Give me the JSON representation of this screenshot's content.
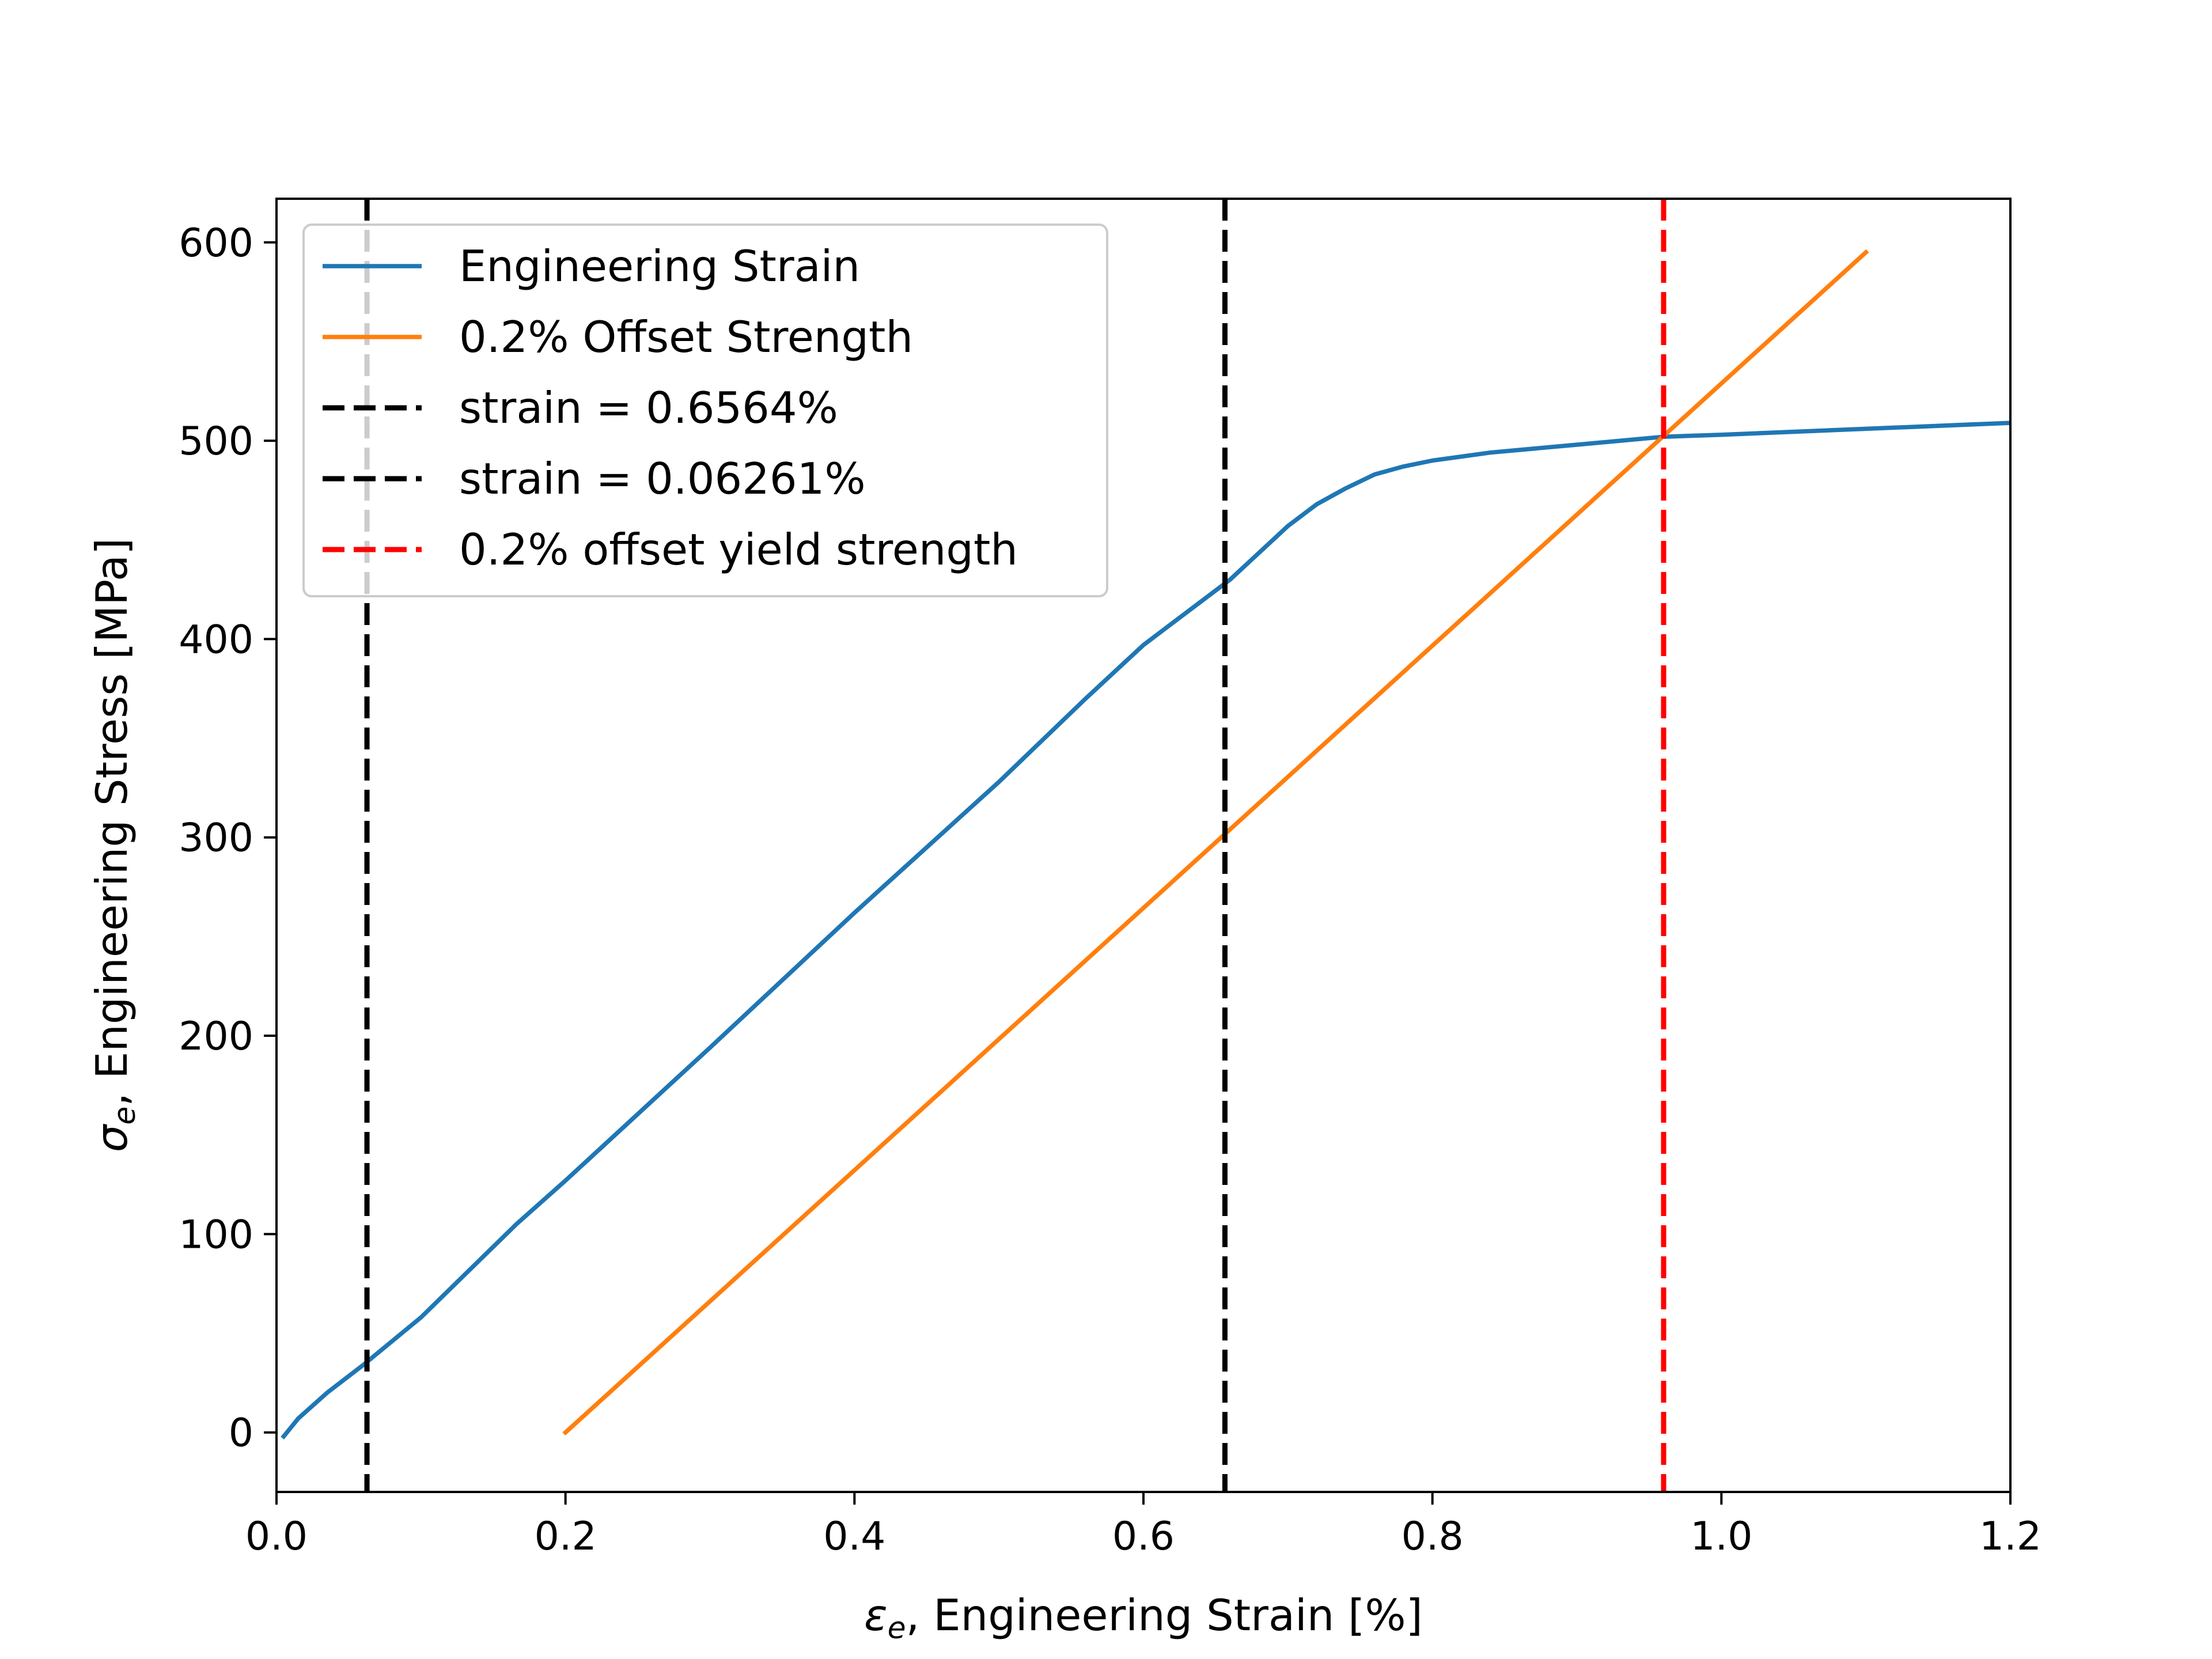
{
  "chart_data": {
    "type": "line",
    "xlabel_symbol": "ε",
    "xlabel_sub": "e",
    "xlabel_text": ", Engineering Strain  [%]",
    "ylabel_symbol": "σ",
    "ylabel_sub": "e",
    "ylabel_text": ", Engineering Stress  [MPa]",
    "xlim": [
      0.0,
      1.2
    ],
    "ylim": [
      -30,
      622
    ],
    "xticks": [
      0.0,
      0.2,
      0.4,
      0.6,
      0.8,
      1.0,
      1.2
    ],
    "xtick_labels": [
      "0.0",
      "0.2",
      "0.4",
      "0.6",
      "0.8",
      "1.0",
      "1.2"
    ],
    "yticks": [
      0,
      100,
      200,
      300,
      400,
      500,
      600
    ],
    "ytick_labels": [
      "0",
      "100",
      "200",
      "300",
      "400",
      "500",
      "600"
    ],
    "grid": false,
    "legend_placement": "upper-left",
    "series": [
      {
        "name": "Engineering Strain",
        "style": "solid",
        "color": "#1f77b4",
        "x": [
          0.005,
          0.015,
          0.035,
          0.06,
          0.1,
          0.166,
          0.2,
          0.3,
          0.4,
          0.5,
          0.56,
          0.6,
          0.66,
          0.7,
          0.72,
          0.74,
          0.76,
          0.78,
          0.8,
          0.84,
          0.9,
          0.96,
          1.0,
          1.1,
          1.2
        ],
        "y": [
          -2,
          7,
          20,
          34,
          58,
          105,
          127,
          194,
          262,
          328,
          370,
          397,
          430,
          457,
          468,
          476,
          483,
          487,
          490,
          494,
          498,
          502,
          503,
          506,
          509
        ]
      },
      {
        "name": "0.2% Offset Strength",
        "style": "solid",
        "color": "#ff7f0e",
        "x": [
          0.2,
          1.1
        ],
        "y": [
          0,
          595
        ]
      },
      {
        "name": "strain = 0.6564%",
        "style": "dashed",
        "color": "#000000",
        "vline_x": 0.6564
      },
      {
        "name": "strain = 0.06261%",
        "style": "dashed",
        "color": "#000000",
        "vline_x": 0.06261
      },
      {
        "name": "0.2% offset yield strength",
        "style": "dashed",
        "color": "#ff0000",
        "vline_x": 0.96
      }
    ]
  }
}
